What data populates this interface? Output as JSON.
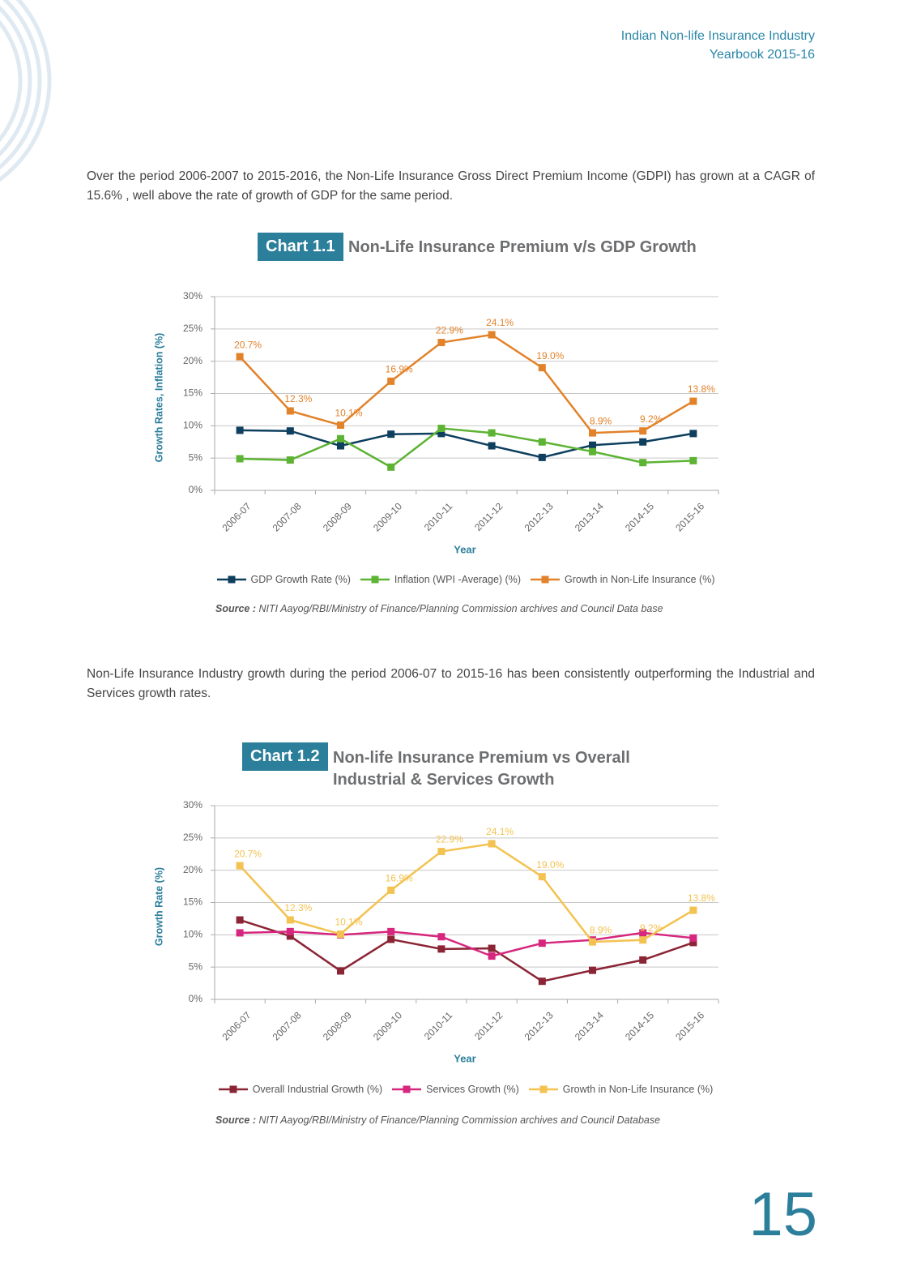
{
  "header": {
    "line1": "Indian Non-life Insurance Industry",
    "line2": "Yearbook 2015-16"
  },
  "paragraphs": [
    "Over the period 2006-2007 to 2015-2016, the Non-Life Insurance Gross Direct Premium Income (GDPI) has grown at a CAGR of 15.6% , well above the rate of growth of GDP for the same period.",
    "Non-Life Insurance Industry growth during the period 2006-07 to 2015-16 has been consistently outperforming the Industrial and Services growth rates."
  ],
  "page_number": "15",
  "chart_data": [
    {
      "type": "line",
      "chart_number": "Chart 1.1",
      "title": "Non-Life Insurance Premium v/s GDP Growth",
      "x_label": "Year",
      "y_label": "Growth Rates, Inflation (%)",
      "categories": [
        "2006-07",
        "2007-08",
        "2008-09",
        "2009-10",
        "2010-11",
        "2011-12",
        "2012-13",
        "2013-14",
        "2014-15",
        "2015-16"
      ],
      "series": [
        {
          "name": "GDP Growth Rate (%)",
          "color": "#0e3f5e",
          "values": [
            9.3,
            9.2,
            6.9,
            8.7,
            8.8,
            6.9,
            5.1,
            7.0,
            7.5,
            8.8
          ]
        },
        {
          "name": "Inflation (WPI -Average)  (%)",
          "color": "#5db333",
          "values": [
            4.9,
            4.7,
            8.0,
            3.6,
            9.6,
            8.9,
            7.5,
            6.0,
            4.3,
            4.6
          ]
        },
        {
          "name": "Growth in Non-Life Insurance (%)",
          "color": "#e2822a",
          "values": [
            20.7,
            12.3,
            10.1,
            16.9,
            22.9,
            24.1,
            19.0,
            8.9,
            9.2,
            13.8
          ],
          "value_labels": [
            "20.7%",
            "12.3%",
            "10.1%",
            "16.9%",
            "22.9%",
            "24.1%",
            "19.0%",
            "8.9%",
            "9.2%",
            "13.8%"
          ]
        }
      ],
      "ylim": [
        0,
        30
      ],
      "yticks": [
        {
          "value": 0,
          "label": "0%"
        },
        {
          "value": 5,
          "label": "5%"
        },
        {
          "value": 10,
          "label": "10%"
        },
        {
          "value": 15,
          "label": "15%"
        },
        {
          "value": 20,
          "label": "20%"
        },
        {
          "value": 25,
          "label": "25%"
        },
        {
          "value": 30,
          "label": "30%"
        }
      ],
      "grid": true,
      "source_label": "Source :",
      "source": "NITI Aayog/RBI/Ministry of Finance/Planning Commission archives and Council Data base"
    },
    {
      "type": "line",
      "chart_number": "Chart 1.2",
      "title": "Non-life Insurance Premium vs Overall Industrial & Services Growth",
      "x_label": "Year",
      "y_label": "Growth Rate (%)",
      "categories": [
        "2006-07",
        "2007-08",
        "2008-09",
        "2009-10",
        "2010-11",
        "2011-12",
        "2012-13",
        "2013-14",
        "2014-15",
        "2015-16"
      ],
      "series": [
        {
          "name": "Overall Industrial Growth (%)",
          "color": "#8b2434",
          "values": [
            12.3,
            9.8,
            4.4,
            9.3,
            7.8,
            7.9,
            2.8,
            4.5,
            6.1,
            8.8
          ]
        },
        {
          "name": "Services Growth (%)",
          "color": "#d6267e",
          "values": [
            10.3,
            10.5,
            10.0,
            10.5,
            9.7,
            6.7,
            8.7,
            9.2,
            10.3,
            9.5
          ]
        },
        {
          "name": "Growth in Non-Life Insurance (%)",
          "color": "#f3c250",
          "values": [
            20.7,
            12.3,
            10.1,
            16.9,
            22.9,
            24.1,
            19.0,
            8.9,
            9.2,
            13.8
          ],
          "value_labels": [
            "20.7%",
            "12.3%",
            "10.1%",
            "16.9%",
            "22.9%",
            "24.1%",
            "19.0%",
            "8.9%",
            "9.2%",
            "13.8%"
          ]
        }
      ],
      "ylim": [
        0,
        30
      ],
      "yticks": [
        {
          "value": 0,
          "label": "0%"
        },
        {
          "value": 5,
          "label": "5%"
        },
        {
          "value": 10,
          "label": "10%"
        },
        {
          "value": 15,
          "label": "15%"
        },
        {
          "value": 20,
          "label": "20%"
        },
        {
          "value": 25,
          "label": "25%"
        },
        {
          "value": 30,
          "label": "30%"
        }
      ],
      "grid": true,
      "source_label": "Source :",
      "source": "NITI Aayog/RBI/Ministry of Finance/Planning Commission archives and Council Database"
    }
  ]
}
